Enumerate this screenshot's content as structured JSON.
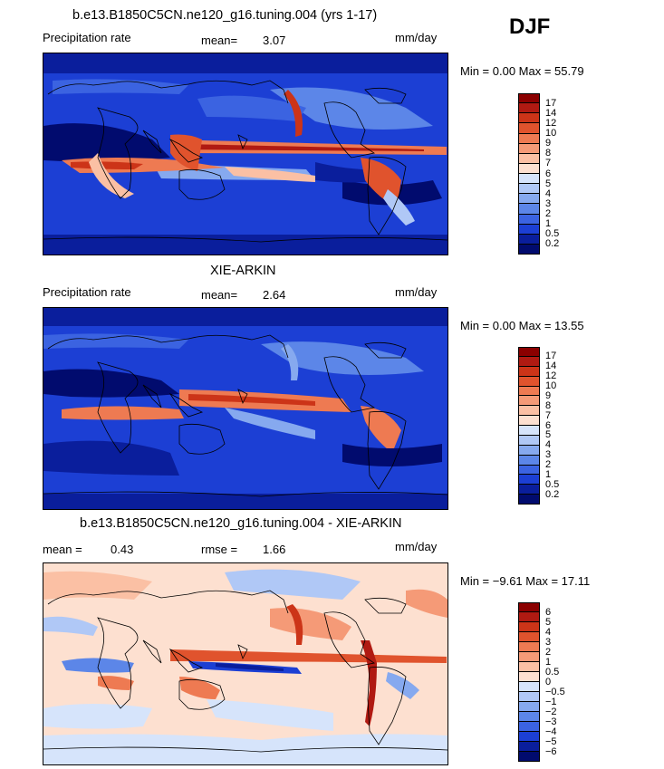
{
  "season": "DJF",
  "panels": [
    {
      "title": "b.e13.B1850C5CN.ne120_g16.tuning.004 (yrs 1-17)",
      "left_label": "Precipitation rate",
      "stat1_label": "mean=",
      "stat1_value": "3.07",
      "stat2_label": "",
      "stat2_value": "",
      "units": "mm/day",
      "minmax": "Min =    0.00 Max =  55.79",
      "palette": "precip",
      "levels": [
        "17",
        "14",
        "12",
        "10",
        "9",
        "8",
        "7",
        "6",
        "5",
        "4",
        "3",
        "2",
        "1",
        "0.5",
        "0.2"
      ]
    },
    {
      "title": "XIE-ARKIN",
      "left_label": "Precipitation rate",
      "stat1_label": "mean=",
      "stat1_value": "2.64",
      "stat2_label": "",
      "stat2_value": "",
      "units": "mm/day",
      "minmax": "Min =    0.00 Max =  13.55",
      "palette": "precip",
      "levels": [
        "17",
        "14",
        "12",
        "10",
        "9",
        "8",
        "7",
        "6",
        "5",
        "4",
        "3",
        "2",
        "1",
        "0.5",
        "0.2"
      ]
    },
    {
      "title": "b.e13.B1850C5CN.ne120_g16.tuning.004 - XIE-ARKIN",
      "left_label": "",
      "stat1_label": "mean =",
      "stat1_value": "0.43",
      "stat2_label": "rmse =",
      "stat2_value": "1.66",
      "units": "mm/day",
      "minmax": "Min =  −9.61 Max =  17.11",
      "palette": "diff",
      "levels": [
        "6",
        "5",
        "4",
        "3",
        "2",
        "1",
        "0.5",
        "0",
        "−0.5",
        "−1",
        "−2",
        "−3",
        "−4",
        "−5",
        "−6"
      ]
    }
  ],
  "colors": {
    "precip": [
      "#8b0000",
      "#b01a12",
      "#cc3418",
      "#e0532d",
      "#ee7a52",
      "#f59a77",
      "#fbc0a4",
      "#fde0d0",
      "#d6e4fb",
      "#b0c8f6",
      "#86a9ef",
      "#5c86e8",
      "#3b63e1",
      "#1c3fd4",
      "#0a1e9c",
      "#010b6e"
    ],
    "diff": [
      "#8b0000",
      "#b01a12",
      "#cc3418",
      "#e0532d",
      "#ee7a52",
      "#f59a77",
      "#fbc0a4",
      "#fde0d0",
      "#d6e4fb",
      "#b0c8f6",
      "#86a9ef",
      "#5c86e8",
      "#3b63e1",
      "#1c3fd4",
      "#0a1e9c",
      "#010b6e"
    ]
  },
  "chart_data": [
    {
      "type": "heatmap",
      "title": "b.e13.B1850C5CN.ne120_g16.tuning.004 (yrs 1-17)",
      "variable": "Precipitation rate",
      "units": "mm/day",
      "mean": 3.07,
      "min": 0.0,
      "max": 55.79,
      "contour_levels": [
        0.2,
        0.5,
        1,
        2,
        3,
        4,
        5,
        6,
        7,
        8,
        9,
        10,
        12,
        14,
        17
      ]
    },
    {
      "type": "heatmap",
      "title": "XIE-ARKIN",
      "variable": "Precipitation rate",
      "units": "mm/day",
      "mean": 2.64,
      "min": 0.0,
      "max": 13.55,
      "contour_levels": [
        0.2,
        0.5,
        1,
        2,
        3,
        4,
        5,
        6,
        7,
        8,
        9,
        10,
        12,
        14,
        17
      ]
    },
    {
      "type": "heatmap",
      "title": "b.e13.B1850C5CN.ne120_g16.tuning.004 - XIE-ARKIN",
      "units": "mm/day",
      "mean": 0.43,
      "rmse": 1.66,
      "min": -9.61,
      "max": 17.11,
      "contour_levels": [
        -6,
        -5,
        -4,
        -3,
        -2,
        -1,
        -0.5,
        0,
        0.5,
        1,
        2,
        3,
        4,
        5,
        6
      ]
    }
  ]
}
